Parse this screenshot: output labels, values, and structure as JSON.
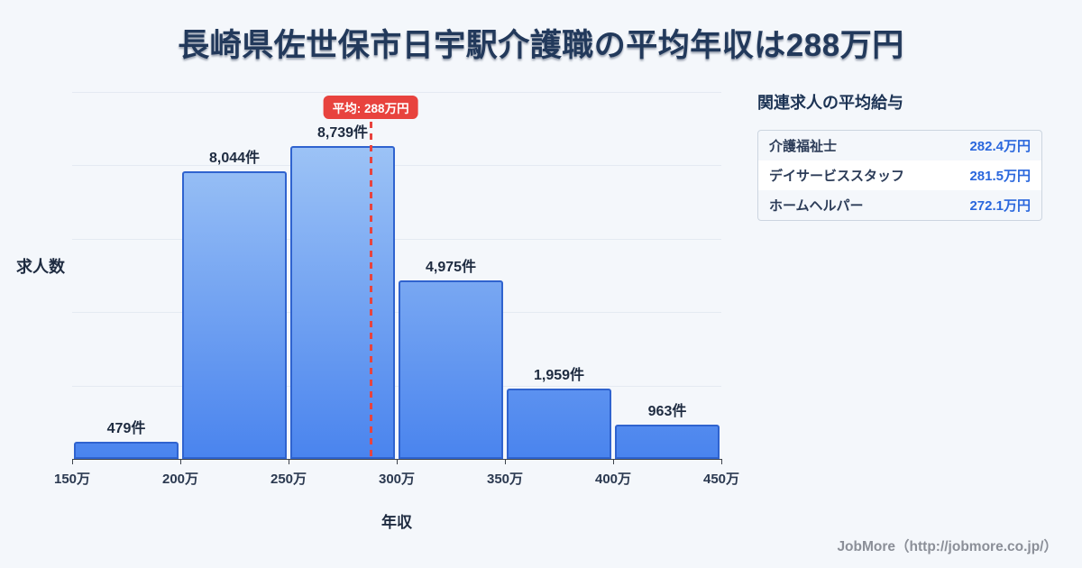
{
  "title": "長崎県佐世保市日宇駅介護職の平均年収は288万円",
  "chart_data": {
    "type": "bar",
    "title": "長崎県佐世保市日宇駅介護職の平均年収は288万円",
    "categories": [
      "150万",
      "200万",
      "250万",
      "300万",
      "350万",
      "400万",
      "450万"
    ],
    "values": [
      479,
      8044,
      8739,
      4975,
      1959,
      963
    ],
    "value_labels": [
      "479件",
      "8,044件",
      "8,739件",
      "4,975件",
      "1,959件",
      "963件"
    ],
    "xlabel": "年収",
    "ylabel": "求人数",
    "x_min": 150,
    "x_max": 450,
    "y_max": 10250,
    "grid": true,
    "legend": false,
    "average_value": 288,
    "average_label": "平均: 288万円"
  },
  "related": {
    "heading": "関連求人の平均給与",
    "rows": [
      {
        "label": "介護福祉士",
        "value": "282.4万円",
        "highlight": false
      },
      {
        "label": "デイサービススタッフ",
        "value": "281.5万円",
        "highlight": true
      },
      {
        "label": "ホームヘルパー",
        "value": "272.1万円",
        "highlight": false
      }
    ]
  },
  "footer": "JobMore（http://jobmore.co.jp/）",
  "colors": {
    "accent_red": "#e8433e",
    "bar_top": "#abcef7",
    "bar_bottom": "#4a84ee",
    "bar_border": "#2f63cf",
    "value_blue": "#2a67dd",
    "title_navy": "#22395b",
    "background": "#f4f7fb"
  }
}
